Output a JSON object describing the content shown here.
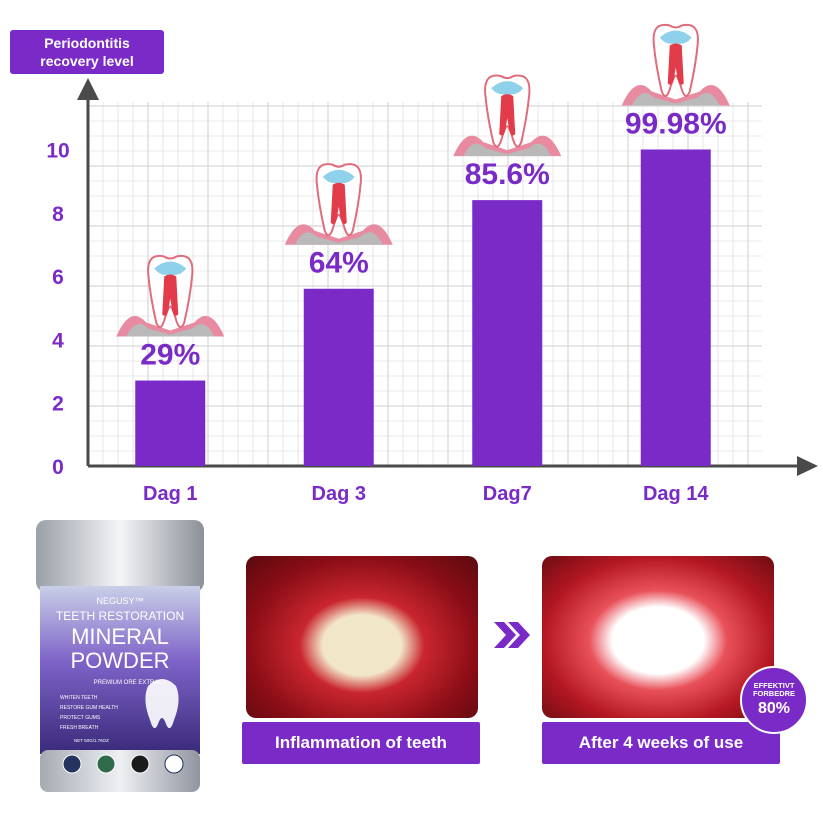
{
  "chart_data": {
    "type": "bar",
    "title": "",
    "ylabel": "Periodontitis recovery level",
    "ylabel_lines": [
      "Periodontitis",
      "recovery level"
    ],
    "xlabel": "",
    "categories": [
      "Dag 1",
      "Dag 3",
      "Dag7",
      "Dag 14"
    ],
    "values": [
      2.7,
      5.6,
      8.4,
      10.0
    ],
    "data_labels": [
      "29%",
      "64%",
      "85.6%",
      "99.98%"
    ],
    "yticks": [
      "0",
      "2",
      "4",
      "6",
      "8",
      "10"
    ],
    "ylim": [
      0,
      11.5
    ],
    "grid": true,
    "bar_color": "#7a2bc7",
    "label_color": "#7a2bc7"
  },
  "product": {
    "brand": "NEGUSY™",
    "line1": "TEETH RESTORATION",
    "line2": "MINERAL",
    "line3": "POWDER",
    "subtitle": "PREMIUM ORE EXTRACT",
    "bullets": [
      "WHITEN TEETH",
      "RESTORE GUM HEALTH",
      "PROTECT GUMS",
      "FRESH BREATH"
    ],
    "net": "NET 50G/1.76OZ"
  },
  "comparison": {
    "before_caption": "Inflammation of teeth",
    "after_caption": "After 4 weeks of use",
    "badge_line1": "EFFEKTIVT",
    "badge_line2": "FORBEDRE",
    "badge_value": "80%"
  }
}
